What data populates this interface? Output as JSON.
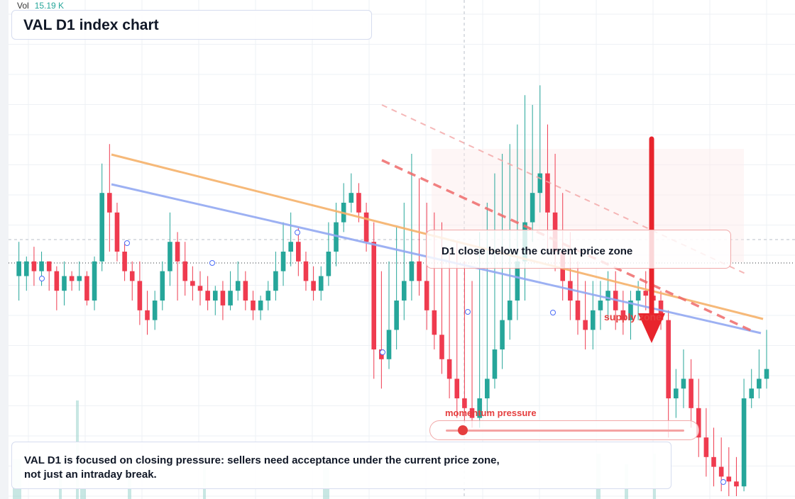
{
  "title": "VAL D1 index chart",
  "volume": {
    "label": "Vol",
    "value": "15.19 K"
  },
  "condition_text": "D1 close below the current price zone",
  "zone_label": "supply zone",
  "momentum": {
    "label": "momentum pressure",
    "level": 0.07
  },
  "note": {
    "line1": "VAL D1 is focused on closing pressure: sellers need acceptance under the current price zone,",
    "line2": "not just an intraday break."
  },
  "colors": {
    "up": "#26a69a",
    "down": "#ef3b4f",
    "orange_line": "#f6b26b",
    "blue_line": "#93a9f2",
    "accent": "#e53e3e"
  },
  "chart_data": {
    "type": "candlestick",
    "title": "VAL D1 index chart",
    "ylim": [
      0,
      100
    ],
    "x": [
      0,
      100
    ],
    "series": [
      {
        "values": [
          [
            1,
            45,
            48,
            52,
            40
          ],
          [
            2,
            45,
            48,
            49,
            42
          ],
          [
            3,
            48,
            46,
            51,
            43
          ],
          [
            4,
            46,
            48,
            50,
            43
          ],
          [
            5,
            48,
            46,
            48,
            42
          ],
          [
            6,
            46,
            42,
            47,
            38
          ],
          [
            7,
            42,
            45,
            48,
            39
          ],
          [
            8,
            45,
            44,
            46,
            42
          ],
          [
            9,
            44,
            45,
            48,
            42
          ],
          [
            10,
            45,
            40,
            46,
            39
          ],
          [
            11,
            40,
            48,
            49,
            38
          ],
          [
            12,
            48,
            62,
            68,
            46
          ],
          [
            13,
            62,
            58,
            72,
            50
          ],
          [
            14,
            58,
            50,
            60,
            48
          ],
          [
            15,
            50,
            46,
            52,
            44
          ],
          [
            16,
            46,
            44,
            48,
            40
          ],
          [
            17,
            44,
            38,
            48,
            35
          ],
          [
            18,
            38,
            36,
            42,
            33
          ],
          [
            19,
            36,
            40,
            42,
            34
          ],
          [
            20,
            40,
            46,
            48,
            38
          ],
          [
            21,
            46,
            52,
            58,
            43
          ],
          [
            22,
            52,
            48,
            54,
            40
          ],
          [
            23,
            48,
            44,
            52,
            41
          ],
          [
            24,
            44,
            43,
            47,
            40
          ],
          [
            25,
            43,
            42,
            46,
            39
          ],
          [
            26,
            42,
            40,
            45,
            38
          ],
          [
            27,
            40,
            42,
            43,
            37
          ],
          [
            28,
            42,
            39,
            44,
            36
          ],
          [
            29,
            39,
            42,
            46,
            38
          ],
          [
            30,
            42,
            44,
            48,
            40
          ],
          [
            31,
            44,
            40,
            46,
            38
          ],
          [
            32,
            40,
            38,
            42,
            36
          ],
          [
            33,
            38,
            40,
            41,
            36
          ],
          [
            34,
            40,
            42,
            44,
            38
          ],
          [
            35,
            42,
            46,
            50,
            40
          ],
          [
            36,
            46,
            50,
            56,
            43
          ],
          [
            37,
            50,
            52,
            58,
            47
          ],
          [
            38,
            52,
            48,
            55,
            45
          ],
          [
            39,
            48,
            44,
            50,
            42
          ],
          [
            40,
            44,
            42,
            47,
            40
          ],
          [
            41,
            42,
            45,
            47,
            40
          ],
          [
            42,
            45,
            50,
            56,
            43
          ],
          [
            43,
            50,
            56,
            60,
            47
          ],
          [
            44,
            56,
            60,
            64,
            54
          ],
          [
            45,
            60,
            62,
            66,
            58
          ],
          [
            46,
            62,
            58,
            64,
            56
          ],
          [
            47,
            58,
            52,
            60,
            50
          ],
          [
            48,
            52,
            30,
            56,
            24
          ],
          [
            49,
            30,
            28,
            46,
            22
          ],
          [
            50,
            28,
            34,
            48,
            26
          ],
          [
            51,
            34,
            40,
            55,
            30
          ],
          [
            52,
            40,
            44,
            60,
            36
          ],
          [
            53,
            44,
            48,
            70,
            40
          ],
          [
            54,
            48,
            44,
            65,
            41
          ],
          [
            55,
            44,
            38,
            60,
            34
          ],
          [
            56,
            38,
            33,
            58,
            30
          ],
          [
            57,
            33,
            28,
            56,
            25
          ],
          [
            58,
            28,
            24,
            50,
            20
          ],
          [
            59,
            24,
            20,
            52,
            16
          ],
          [
            60,
            20,
            18,
            48,
            15
          ],
          [
            61,
            18,
            16,
            44,
            14
          ],
          [
            62,
            16,
            20,
            54,
            14
          ],
          [
            63,
            20,
            24,
            60,
            17
          ],
          [
            64,
            24,
            30,
            66,
            22
          ],
          [
            65,
            30,
            36,
            70,
            26
          ],
          [
            66,
            36,
            40,
            72,
            32
          ],
          [
            67,
            40,
            48,
            76,
            36
          ],
          [
            68,
            48,
            56,
            82,
            40
          ],
          [
            69,
            56,
            62,
            80,
            52
          ],
          [
            70,
            62,
            66,
            84,
            58
          ],
          [
            71,
            66,
            58,
            76,
            50
          ],
          [
            72,
            58,
            50,
            70,
            46
          ],
          [
            73,
            50,
            44,
            62,
            40
          ],
          [
            74,
            44,
            40,
            54,
            36
          ],
          [
            75,
            40,
            36,
            48,
            33
          ],
          [
            76,
            36,
            34,
            44,
            30
          ],
          [
            77,
            34,
            38,
            44,
            30
          ],
          [
            78,
            38,
            40,
            44,
            34
          ],
          [
            79,
            40,
            42,
            46,
            36
          ],
          [
            80,
            42,
            38,
            46,
            34
          ],
          [
            81,
            38,
            36,
            42,
            33
          ],
          [
            82,
            36,
            40,
            42,
            32
          ],
          [
            83,
            40,
            42,
            44,
            36
          ],
          [
            84,
            42,
            41,
            46,
            38
          ],
          [
            85,
            41,
            40,
            43,
            37
          ],
          [
            86,
            40,
            36,
            42,
            34
          ],
          [
            87,
            36,
            20,
            38,
            12
          ],
          [
            88,
            20,
            22,
            26,
            16
          ],
          [
            89,
            22,
            24,
            30,
            18
          ],
          [
            90,
            24,
            18,
            28,
            14
          ],
          [
            91,
            18,
            12,
            24,
            8
          ],
          [
            92,
            12,
            8,
            18,
            4
          ],
          [
            93,
            8,
            6,
            14,
            2
          ],
          [
            94,
            6,
            4,
            12,
            1
          ],
          [
            95,
            4,
            3,
            10,
            0
          ],
          [
            96,
            3,
            2,
            8,
            0
          ],
          [
            97,
            2,
            20,
            24,
            1
          ],
          [
            98,
            20,
            22,
            26,
            18
          ],
          [
            99,
            22,
            24,
            30,
            20
          ],
          [
            100,
            24,
            26,
            34,
            22
          ]
        ]
      }
    ],
    "annotations": [
      "supply zone",
      "D1 close below the current price zone"
    ]
  }
}
